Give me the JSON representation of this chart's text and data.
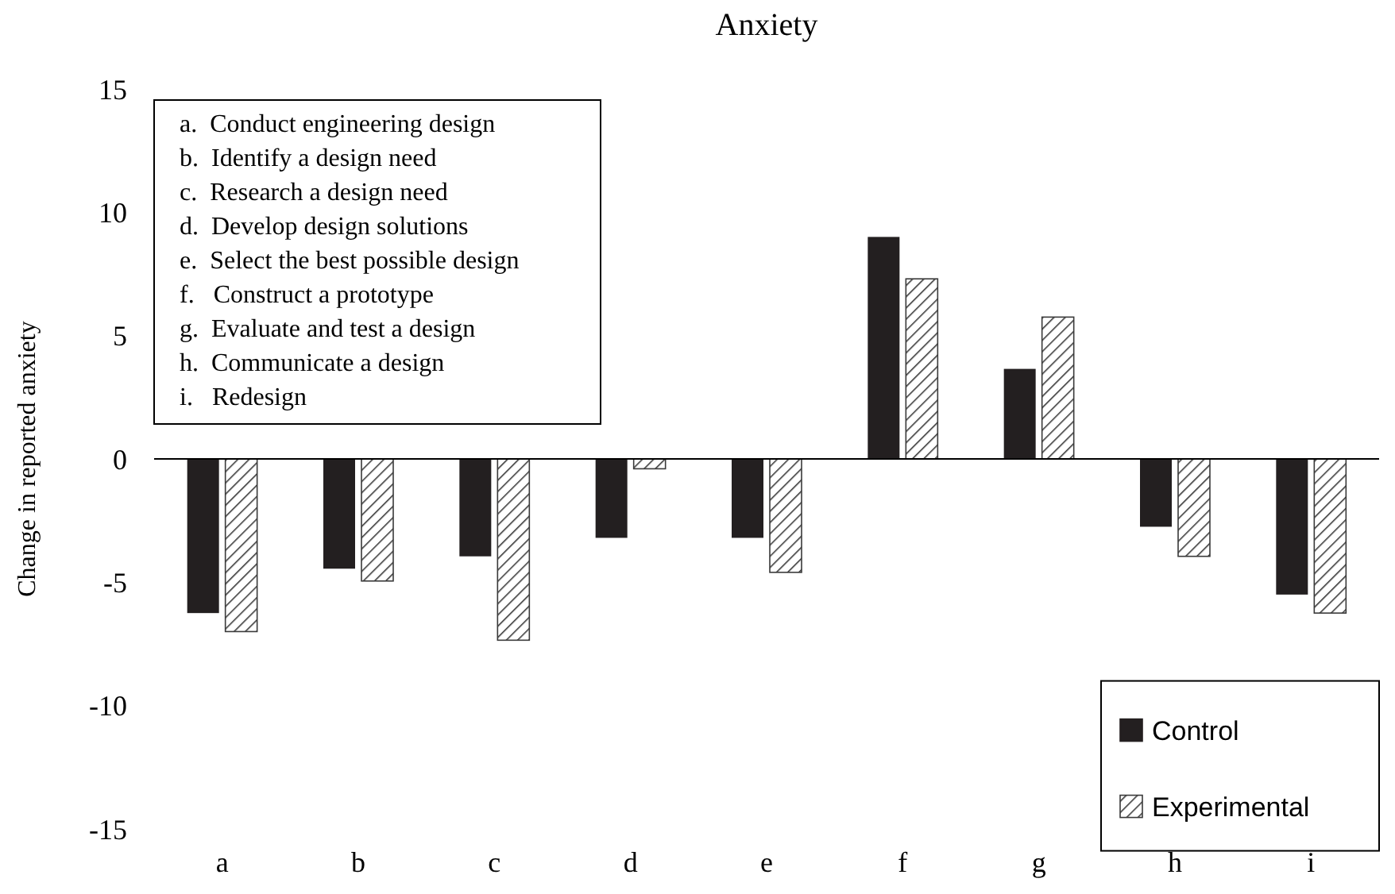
{
  "chart_data": {
    "type": "bar",
    "title": "Anxiety",
    "ylabel": "Change in reported anxiety",
    "categories": [
      "a",
      "b",
      "c",
      "d",
      "e",
      "f",
      "g",
      "h",
      "i"
    ],
    "series": [
      {
        "name": "Control",
        "color": "#231f20",
        "values": [
          -6.25,
          -4.45,
          -3.95,
          -3.2,
          -3.2,
          9.0,
          3.65,
          -2.75,
          -5.5
        ]
      },
      {
        "name": "Experimental",
        "color": "#3a3a3a",
        "values": [
          -7.0,
          -4.95,
          -7.35,
          -0.4,
          -4.6,
          7.3,
          5.75,
          -3.95,
          -6.25
        ]
      }
    ],
    "ylim": [
      -15,
      15
    ],
    "yticks": [
      -15,
      -10,
      -5,
      0,
      5,
      10,
      15
    ],
    "legend": "bottom right",
    "annotations": [
      "a.  Conduct engineering design",
      "b.  Identify a design need",
      "c.  Research a design need",
      "d.  Develop design solutions",
      "e.  Select the best possible design",
      "f.   Construct a prototype",
      "g.  Evaluate and test a design",
      "h.  Communicate a design",
      "i.   Redesign"
    ]
  }
}
